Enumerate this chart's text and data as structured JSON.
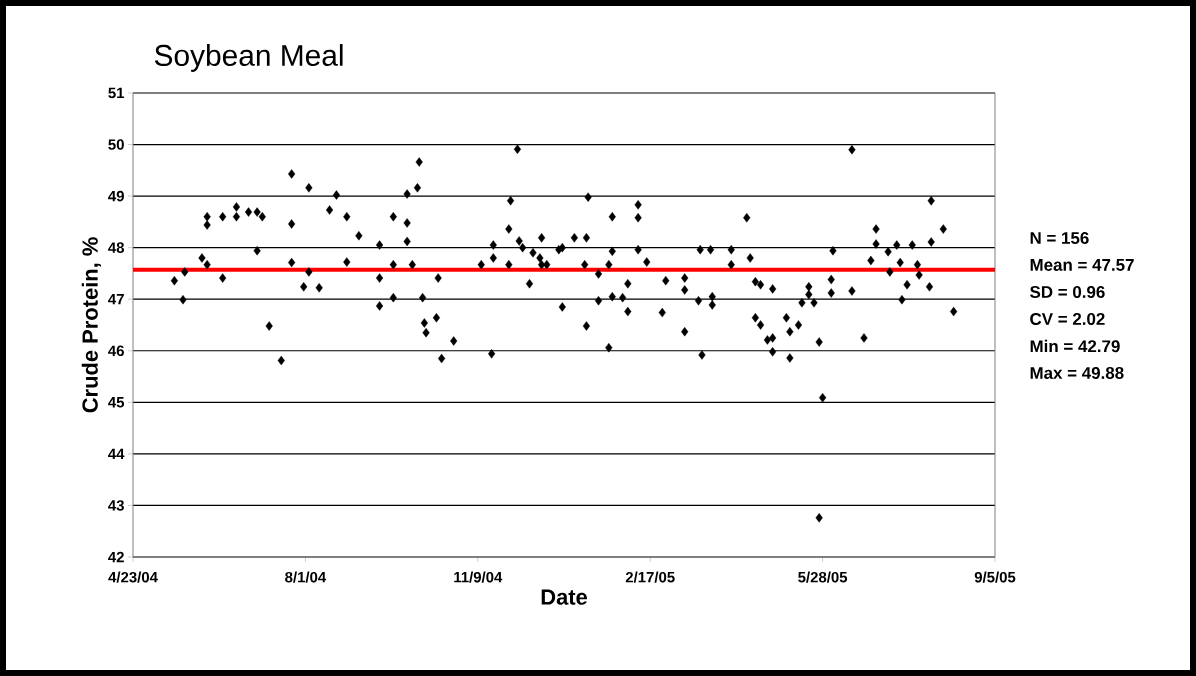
{
  "chart_data": {
    "type": "scatter",
    "title": "Soybean Meal",
    "xlabel": "Date",
    "ylabel": "Crude Protein, %",
    "x": [
      "2004-05-17",
      "2004-05-22",
      "2004-05-23",
      "2004-06-02",
      "2004-06-05",
      "2004-06-05",
      "2004-06-05",
      "2004-06-14",
      "2004-06-14",
      "2004-06-22",
      "2004-06-22",
      "2004-06-29",
      "2004-07-04",
      "2004-07-07",
      "2004-07-04",
      "2004-07-11",
      "2004-07-18",
      "2004-07-24",
      "2004-07-24",
      "2004-07-24",
      "2004-07-31",
      "2004-08-03",
      "2004-08-03",
      "2004-08-09",
      "2004-08-15",
      "2004-08-19",
      "2004-08-25",
      "2004-08-25",
      "2004-09-01",
      "2004-09-13",
      "2004-09-13",
      "2004-09-13",
      "2004-09-21",
      "2004-09-21",
      "2004-09-21",
      "2004-09-29",
      "2004-09-29",
      "2004-09-29",
      "2004-10-05",
      "2004-10-06",
      "2004-10-02",
      "2004-10-08",
      "2004-10-09",
      "2004-10-10",
      "2004-10-16",
      "2004-10-17",
      "2004-10-19",
      "2004-10-26",
      "2004-11-11",
      "2004-11-18",
      "2004-11-18",
      "2004-11-17",
      "2004-11-27",
      "2004-11-27",
      "2004-11-28",
      "2004-12-02",
      "2004-12-03",
      "2004-12-05",
      "2004-12-09",
      "2004-12-11",
      "2004-12-16",
      "2004-12-15",
      "2004-12-16",
      "2004-12-19",
      "2004-12-26",
      "2004-12-28",
      "2004-12-28",
      "2005-01-04",
      "2005-01-11",
      "2005-01-12",
      "2005-01-10",
      "2005-01-11",
      "2005-01-18",
      "2005-01-18",
      "2005-01-24",
      "2005-01-24",
      "2005-01-26",
      "2005-01-26",
      "2005-01-26",
      "2005-02-01",
      "2005-02-04",
      "2005-02-04",
      "2005-02-10",
      "2005-02-10",
      "2005-02-10",
      "2005-02-15",
      "2005-02-24",
      "2005-02-26",
      "2005-03-09",
      "2005-03-09",
      "2005-03-09",
      "2005-03-17",
      "2005-03-18",
      "2005-03-24",
      "2005-03-19",
      "2005-03-25",
      "2005-03-25",
      "2005-04-05",
      "2005-04-05",
      "2005-04-14",
      "2005-04-16",
      "2005-04-19",
      "2005-04-22",
      "2005-04-19",
      "2005-04-22",
      "2005-04-26",
      "2005-04-29",
      "2005-04-29",
      "2005-04-29",
      "2005-05-07",
      "2005-05-09",
      "2005-05-14",
      "2005-05-09",
      "2005-05-16",
      "2005-05-20",
      "2005-05-20",
      "2005-05-23",
      "2005-05-26",
      "2005-05-28",
      "2005-05-26",
      "2005-06-02",
      "2005-06-02",
      "2005-06-03",
      "2005-06-14",
      "2005-06-14",
      "2005-06-21",
      "2005-06-25",
      "2005-06-28",
      "2005-06-28",
      "2005-07-05",
      "2005-07-06",
      "2005-07-10",
      "2005-07-12",
      "2005-07-13",
      "2005-07-16",
      "2005-07-19",
      "2005-07-22",
      "2005-07-23",
      "2005-07-29",
      "2005-07-30",
      "2005-07-30",
      "2005-08-06",
      "2005-08-12"
    ],
    "values": [
      47.36,
      46.99,
      47.53,
      47.8,
      47.67,
      48.6,
      48.44,
      47.41,
      48.6,
      48.79,
      48.6,
      48.69,
      48.69,
      48.6,
      47.94,
      46.48,
      45.81,
      49.43,
      48.46,
      47.71,
      47.24,
      49.16,
      47.53,
      47.22,
      48.73,
      49.02,
      48.6,
      47.72,
      48.23,
      48.05,
      47.41,
      46.87,
      48.6,
      47.67,
      47.03,
      48.48,
      48.12,
      49.04,
      49.16,
      49.66,
      47.67,
      47.03,
      46.54,
      46.35,
      46.64,
      47.41,
      45.85,
      46.19,
      47.67,
      48.05,
      47.8,
      45.94,
      47.67,
      48.36,
      48.91,
      49.91,
      48.13,
      48.0,
      47.3,
      47.9,
      48.19,
      47.8,
      47.67,
      47.67,
      47.96,
      48.0,
      46.85,
      48.19,
      48.19,
      48.98,
      47.67,
      46.48,
      47.49,
      46.97,
      46.06,
      47.67,
      48.6,
      47.93,
      47.05,
      47.03,
      47.3,
      46.76,
      48.83,
      48.58,
      47.96,
      47.72,
      46.74,
      47.36,
      47.41,
      47.18,
      46.37,
      46.97,
      47.96,
      47.96,
      45.92,
      47.05,
      46.89,
      47.96,
      47.67,
      48.58,
      47.8,
      47.34,
      47.28,
      46.64,
      46.5,
      46.21,
      47.2,
      46.25,
      45.98,
      46.64,
      46.37,
      46.5,
      45.86,
      46.93,
      47.24,
      47.09,
      46.93,
      46.17,
      45.09,
      42.76,
      47.38,
      47.12,
      47.94,
      49.9,
      47.16,
      46.25,
      47.75,
      48.36,
      48.07,
      47.92,
      47.53,
      48.05,
      47.71,
      46.99,
      47.28,
      48.05,
      47.67,
      47.47,
      47.24,
      48.11,
      48.91,
      48.36,
      46.76
    ],
    "color": "#000000",
    "marker": "diamond",
    "xlim": [
      "2004-04-23",
      "2005-09-05"
    ],
    "xticks": [
      {
        "value": "2004-04-23",
        "label": "4/23/04"
      },
      {
        "value": "2004-08-01",
        "label": "8/1/04"
      },
      {
        "value": "2004-11-09",
        "label": "11/9/04"
      },
      {
        "value": "2005-02-17",
        "label": "2/17/05"
      },
      {
        "value": "2005-05-28",
        "label": "5/28/05"
      },
      {
        "value": "2005-09-05",
        "label": "9/5/05"
      }
    ],
    "ylim": [
      42,
      51
    ],
    "yticks": [
      42,
      43,
      44,
      45,
      46,
      47,
      48,
      49,
      50,
      51
    ],
    "grid": "y",
    "ref_lines": [
      {
        "axis": "y",
        "value": 47.57,
        "color": "#ff0000"
      }
    ],
    "annotations": [
      "N = 156",
      "Mean = 47.57",
      "SD = 0.96",
      "CV = 2.02",
      "Min = 42.79",
      "Max = 49.88"
    ]
  }
}
